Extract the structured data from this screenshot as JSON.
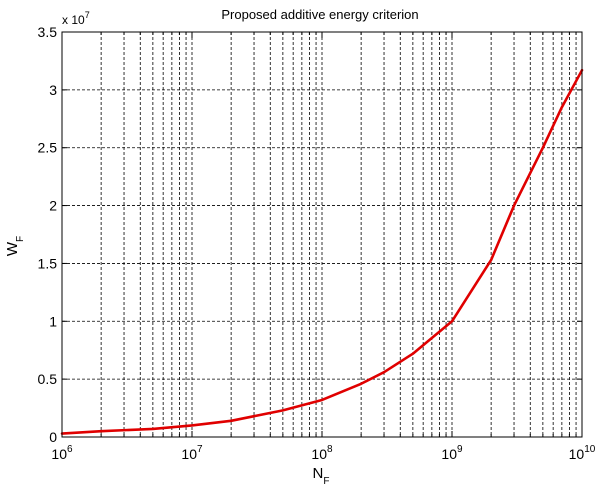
{
  "chart_data": {
    "type": "line",
    "title": "Proposed additive energy criterion",
    "x_scale": "log",
    "xlim": [
      1000000,
      10000000000
    ],
    "xlabel": {
      "main": "N",
      "sub": "F"
    },
    "x_ticks": [
      {
        "value": 1000000,
        "base": "10",
        "exp": "6"
      },
      {
        "value": 10000000,
        "base": "10",
        "exp": "7"
      },
      {
        "value": 100000000,
        "base": "10",
        "exp": "8"
      },
      {
        "value": 1000000000,
        "base": "10",
        "exp": "9"
      },
      {
        "value": 10000000000,
        "base": "10",
        "exp": "10"
      }
    ],
    "ylim": [
      0,
      3.5
    ],
    "ylabel": {
      "main": "W",
      "sub": "F"
    },
    "y_multiplier": {
      "base": "x 10",
      "exp": "7"
    },
    "y_ticks": [
      {
        "value": 0,
        "label": "0"
      },
      {
        "value": 0.5,
        "label": "0.5"
      },
      {
        "value": 1,
        "label": "1"
      },
      {
        "value": 1.5,
        "label": "1.5"
      },
      {
        "value": 2,
        "label": "2"
      },
      {
        "value": 2.5,
        "label": "2.5"
      },
      {
        "value": 3,
        "label": "3"
      },
      {
        "value": 3.5,
        "label": "3.5"
      }
    ],
    "grid": true,
    "grid_style": "dashed",
    "series": [
      {
        "color": "#e00000",
        "x": [
          1000000,
          2000000,
          5000000,
          10000000,
          20000000,
          50000000,
          100000000,
          200000000,
          300000000,
          500000000,
          1000000000,
          2000000000,
          3000000000,
          5000000000,
          7000000000,
          10000000000
        ],
        "y": [
          0.03,
          0.05,
          0.07,
          0.1,
          0.14,
          0.23,
          0.32,
          0.46,
          0.56,
          0.72,
          1.0,
          1.53,
          2.0,
          2.5,
          2.85,
          3.17
        ]
      }
    ]
  }
}
